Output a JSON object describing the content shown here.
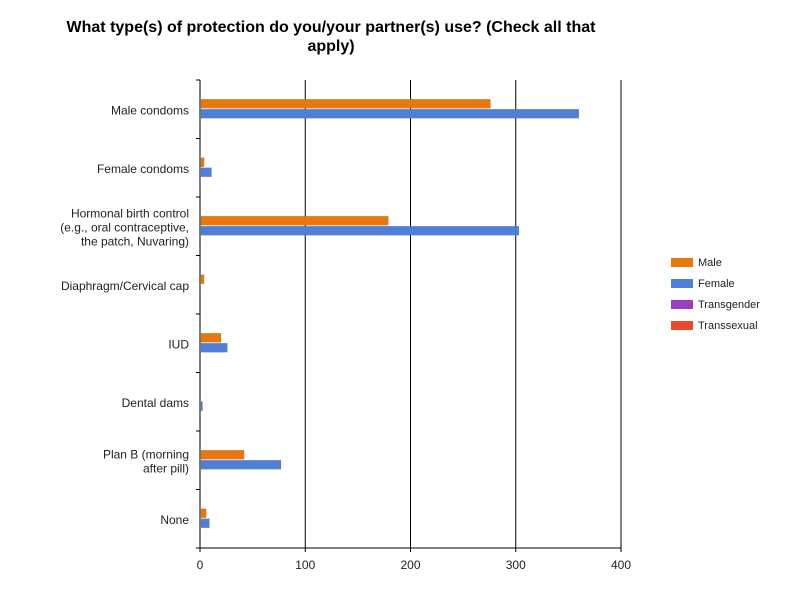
{
  "chart_data": {
    "type": "bar",
    "orientation": "horizontal",
    "title": [
      "What type(s) of protection do you/your partner(s) use? (Check all that",
      "apply)"
    ],
    "categories": [
      [
        "Male condoms"
      ],
      [
        "Female condoms"
      ],
      [
        "Hormonal birth control",
        "(e.g., oral contraceptive,",
        "the patch, Nuvaring)"
      ],
      [
        "Diaphragm/Cervical cap"
      ],
      [
        "IUD"
      ],
      [
        "Dental dams"
      ],
      [
        "Plan B (morning",
        "after pill)"
      ],
      [
        "None"
      ]
    ],
    "series": [
      {
        "name": "Male",
        "color": "#e8780c",
        "values": [
          275,
          3,
          178,
          3,
          19,
          0,
          41,
          5
        ]
      },
      {
        "name": "Female",
        "color": "#4f7fd6",
        "values": [
          359,
          10,
          302,
          0,
          25,
          1,
          76,
          8
        ]
      },
      {
        "name": "Transgender",
        "color": "#9a3fc4",
        "values": [
          0,
          0,
          0,
          0,
          0,
          0,
          0,
          0
        ]
      },
      {
        "name": "Transsexual",
        "color": "#e84a2e",
        "values": [
          0,
          0,
          0,
          0,
          0,
          0,
          0,
          0
        ]
      }
    ],
    "xlim": [
      0,
      400
    ],
    "xticks": [
      0,
      100,
      200,
      300,
      400
    ],
    "xlabel": "",
    "ylabel": "",
    "grid": true,
    "legend_position": "right"
  }
}
